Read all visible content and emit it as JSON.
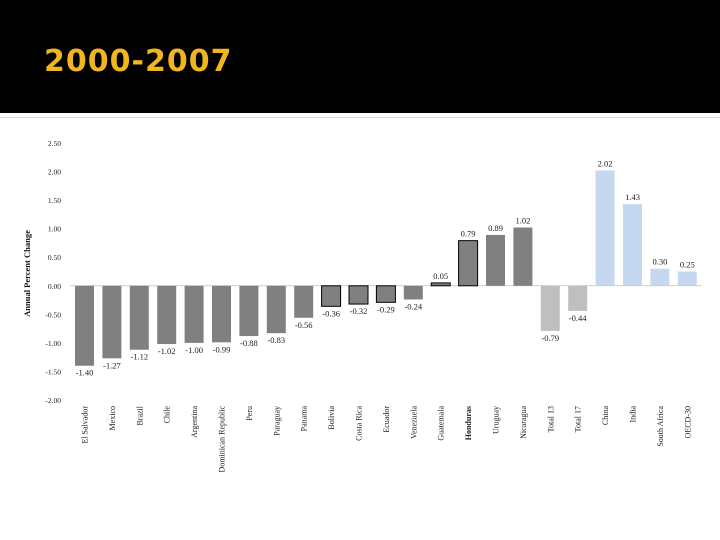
{
  "slide": {
    "title": "2000-2007"
  },
  "chart_data": {
    "type": "bar",
    "title": "",
    "xlabel": "",
    "ylabel": "Annual Percent Change",
    "ylim": [
      -2.0,
      2.5
    ],
    "yticks": [
      "2.50",
      "2.00",
      "1.50",
      "1.00",
      "0.50",
      "0.00",
      "-0.50",
      "-1.00",
      "-1.50",
      "-2.00"
    ],
    "grid": false,
    "categories": [
      "El Salvador",
      "Mexico",
      "Brazil",
      "Chile",
      "Argentina",
      "Dominican Republic",
      "Peru",
      "Paraguay",
      "Panama",
      "Bolivia",
      "Costa Rica",
      "Ecuador",
      "Venezuela",
      "Guatemala",
      "Honduras",
      "Uruguay",
      "Nicaragua",
      "Total 13",
      "Total 17",
      "China",
      "India",
      "South Africa",
      "OECD-30"
    ],
    "values": [
      -1.4,
      -1.27,
      -1.12,
      -1.02,
      -1.0,
      -0.99,
      -0.88,
      -0.83,
      -0.56,
      -0.36,
      -0.32,
      -0.29,
      -0.24,
      0.05,
      0.79,
      0.89,
      1.02,
      -0.79,
      -0.44,
      2.02,
      1.43,
      0.3,
      0.25
    ],
    "value_labels": [
      "-1.40",
      "-1.27",
      "-1.12",
      "-1.02",
      "-1.00",
      "-0.99",
      "-0.88",
      "-0.83",
      "-0.56",
      "-0.36",
      "-0.32",
      "-0.29",
      "-0.24",
      "0.05",
      "0.79",
      "0.89",
      "1.02",
      "-0.79",
      "-0.44",
      "2.02",
      "1.43",
      "0.30",
      "0.25"
    ],
    "bar_colors": [
      "#808080",
      "#808080",
      "#808080",
      "#808080",
      "#808080",
      "#808080",
      "#808080",
      "#808080",
      "#808080",
      "#808080",
      "#808080",
      "#808080",
      "#808080",
      "#808080",
      "#808080",
      "#808080",
      "#808080",
      "#BFBFBF",
      "#BFBFBF",
      "#C6D8F0",
      "#C6D8F0",
      "#C6D8F0",
      "#C6D8F0"
    ],
    "bar_outlines": [
      "",
      "",
      "",
      "",
      "",
      "",
      "",
      "",
      "",
      "#000000",
      "#000000",
      "#000000",
      "",
      "#000000",
      "#000000",
      "",
      "",
      "",
      "",
      "",
      "",
      "",
      ""
    ],
    "bold_categories": [
      "Honduras"
    ]
  }
}
